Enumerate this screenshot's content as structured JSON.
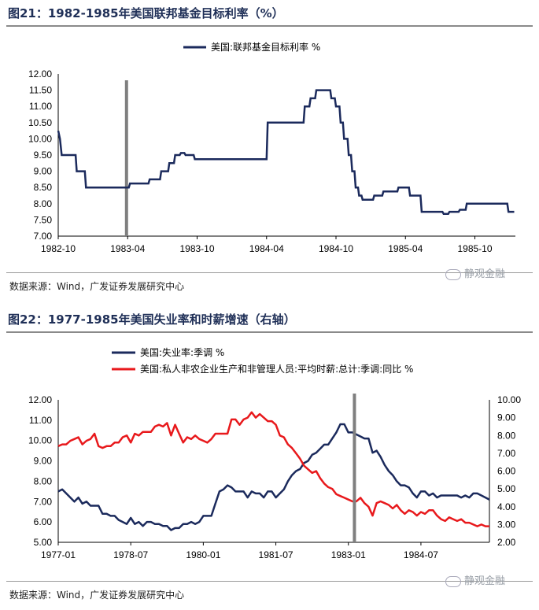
{
  "figure1": {
    "title": "图21：1982-1985年美国联邦基金目标利率（%）",
    "source": "数据来源：Wind，广发证券发展研究中心",
    "watermark": "静观金融"
  },
  "figure2": {
    "title": "图22：1977-1985年美国失业率和时薪增速（右轴）",
    "source": "数据来源：Wind，广发证券发展研究中心",
    "watermark": "静观金融"
  },
  "colors": {
    "navy": "#1b2a5c",
    "red": "#e8191c",
    "marker": "#7f7f7f",
    "title": "#1f2f57"
  },
  "chart_data": [
    {
      "type": "line",
      "title": "1982-1985年美国联邦基金目标利率（%）",
      "xlabel": "",
      "ylabel": "",
      "x_unit": "months since 1982-10",
      "xlim": [
        0,
        39.5
      ],
      "ylim": [
        7.0,
        12.0
      ],
      "yticks": [
        "7.00",
        "7.50",
        "8.00",
        "8.50",
        "9.00",
        "9.50",
        "10.00",
        "10.50",
        "11.00",
        "11.50",
        "12.00"
      ],
      "xticks": [
        {
          "x": 0,
          "label": "1982-10"
        },
        {
          "x": 6,
          "label": "1983-04"
        },
        {
          "x": 12,
          "label": "1983-10"
        },
        {
          "x": 18,
          "label": "1984-04"
        },
        {
          "x": 24,
          "label": "1984-10"
        },
        {
          "x": 30,
          "label": "1985-04"
        },
        {
          "x": 36,
          "label": "1985-10"
        }
      ],
      "vline_x": 5.9,
      "series": [
        {
          "name": "美国:联邦基金目标利率 %",
          "color": "#1b2a5c",
          "step": true,
          "points": [
            [
              0,
              10.25
            ],
            [
              0.15,
              10.0
            ],
            [
              0.3,
              9.5
            ],
            [
              1.5,
              9.5
            ],
            [
              1.6,
              9.0
            ],
            [
              2.3,
              9.0
            ],
            [
              2.4,
              8.5
            ],
            [
              6.1,
              8.5
            ],
            [
              6.2,
              8.625
            ],
            [
              7.8,
              8.625
            ],
            [
              7.9,
              8.75
            ],
            [
              8.8,
              8.75
            ],
            [
              8.9,
              9.0
            ],
            [
              9.5,
              9.0
            ],
            [
              9.6,
              9.25
            ],
            [
              10.0,
              9.25
            ],
            [
              10.1,
              9.5
            ],
            [
              10.5,
              9.5
            ],
            [
              10.6,
              9.5625
            ],
            [
              10.9,
              9.5625
            ],
            [
              11.0,
              9.5
            ],
            [
              11.7,
              9.5
            ],
            [
              11.8,
              9.375
            ],
            [
              18.0,
              9.375
            ],
            [
              18.1,
              10.5
            ],
            [
              21.2,
              10.5
            ],
            [
              21.3,
              11.0
            ],
            [
              21.7,
              11.0
            ],
            [
              21.8,
              11.25
            ],
            [
              22.2,
              11.25
            ],
            [
              22.3,
              11.5
            ],
            [
              23.5,
              11.5
            ],
            [
              23.6,
              11.25
            ],
            [
              23.9,
              11.25
            ],
            [
              24.0,
              11.0
            ],
            [
              24.3,
              11.0
            ],
            [
              24.4,
              10.5
            ],
            [
              24.6,
              10.5
            ],
            [
              24.7,
              10.0
            ],
            [
              25.0,
              10.0
            ],
            [
              25.1,
              9.5
            ],
            [
              25.3,
              9.5
            ],
            [
              25.4,
              9.0
            ],
            [
              25.6,
              9.0
            ],
            [
              25.7,
              8.5
            ],
            [
              25.9,
              8.5
            ],
            [
              26.0,
              8.25
            ],
            [
              26.2,
              8.25
            ],
            [
              26.3,
              8.125
            ],
            [
              27.2,
              8.125
            ],
            [
              27.3,
              8.25
            ],
            [
              28.0,
              8.25
            ],
            [
              28.1,
              8.375
            ],
            [
              29.3,
              8.375
            ],
            [
              29.4,
              8.5
            ],
            [
              30.3,
              8.5
            ],
            [
              30.4,
              8.25
            ],
            [
              31.3,
              8.25
            ],
            [
              31.4,
              7.75
            ],
            [
              33.2,
              7.75
            ],
            [
              33.3,
              7.6875
            ],
            [
              33.7,
              7.6875
            ],
            [
              33.8,
              7.75
            ],
            [
              34.6,
              7.75
            ],
            [
              34.7,
              7.8125
            ],
            [
              35.2,
              7.8125
            ],
            [
              35.3,
              8.0
            ],
            [
              38.8,
              8.0
            ],
            [
              38.9,
              7.75
            ],
            [
              39.4,
              7.75
            ]
          ]
        }
      ]
    },
    {
      "type": "line",
      "title": "1977-1985年美国失业率和时薪增速（右轴）",
      "xlabel": "",
      "ylabel": "",
      "x_unit": "months since 1977-01",
      "xlim": [
        0,
        107
      ],
      "ylim_left": [
        5.0,
        12.0
      ],
      "ylim_right": [
        2.0,
        10.0
      ],
      "yticks_left": [
        "5.00",
        "6.00",
        "7.00",
        "8.00",
        "9.00",
        "10.00",
        "11.00",
        "12.00"
      ],
      "yticks_right": [
        "2.00",
        "3.00",
        "4.00",
        "5.00",
        "6.00",
        "7.00",
        "8.00",
        "9.00",
        "10.00"
      ],
      "xticks": [
        {
          "x": 0,
          "label": "1977-01"
        },
        {
          "x": 18,
          "label": "1978-07"
        },
        {
          "x": 36,
          "label": "1980-01"
        },
        {
          "x": 54,
          "label": "1981-07"
        },
        {
          "x": 72,
          "label": "1983-01"
        },
        {
          "x": 90,
          "label": "1984-07"
        }
      ],
      "vline_x": 73.5,
      "series": [
        {
          "name": "美国:失业率:季调 %",
          "axis": "left",
          "color": "#1b2a5c",
          "values": [
            7.5,
            7.6,
            7.4,
            7.2,
            7.0,
            7.2,
            6.9,
            7.0,
            6.8,
            6.8,
            6.8,
            6.4,
            6.4,
            6.3,
            6.3,
            6.1,
            6.0,
            5.9,
            6.2,
            5.9,
            6.0,
            5.8,
            6.0,
            6.0,
            5.9,
            5.9,
            5.8,
            5.8,
            5.6,
            5.7,
            5.7,
            5.9,
            5.9,
            6.0,
            5.9,
            6.0,
            6.3,
            6.3,
            6.3,
            6.9,
            7.5,
            7.6,
            7.8,
            7.7,
            7.5,
            7.5,
            7.5,
            7.2,
            7.5,
            7.4,
            7.4,
            7.2,
            7.5,
            7.5,
            7.2,
            7.4,
            7.6,
            8.0,
            8.3,
            8.5,
            8.6,
            8.9,
            9.0,
            9.3,
            9.4,
            9.6,
            9.8,
            9.8,
            10.1,
            10.4,
            10.8,
            10.8,
            10.4,
            10.4,
            10.3,
            10.2,
            10.1,
            10.1,
            9.4,
            9.5,
            9.2,
            8.8,
            8.5,
            8.3,
            8.0,
            7.8,
            7.8,
            7.7,
            7.4,
            7.2,
            7.5,
            7.5,
            7.3,
            7.4,
            7.2,
            7.3,
            7.3,
            7.3,
            7.3,
            7.3,
            7.2,
            7.3,
            7.2,
            7.4,
            7.4,
            7.3,
            7.2,
            7.1
          ]
        },
        {
          "name": "美国:私人非农企业生产和非管理人员:平均时薪:总计:季调:同比 %",
          "axis": "right",
          "color": "#e8191c",
          "values": [
            7.4,
            7.5,
            7.5,
            7.7,
            7.8,
            7.9,
            7.5,
            7.7,
            7.8,
            8.1,
            7.4,
            7.3,
            7.4,
            7.4,
            7.6,
            7.6,
            7.9,
            8.0,
            7.6,
            8.1,
            8.0,
            8.2,
            8.2,
            8.2,
            8.5,
            8.6,
            8.5,
            8.7,
            8.0,
            8.6,
            8.1,
            7.6,
            7.9,
            7.8,
            8.0,
            7.8,
            7.7,
            7.6,
            7.8,
            8.1,
            8.1,
            8.1,
            8.1,
            8.9,
            8.9,
            8.6,
            8.9,
            9.0,
            9.3,
            9.0,
            9.2,
            9.0,
            8.8,
            8.8,
            8.6,
            8.0,
            7.9,
            7.5,
            7.3,
            7.0,
            6.7,
            6.3,
            6.1,
            5.9,
            6.0,
            5.6,
            5.3,
            5.1,
            5.0,
            4.7,
            4.6,
            4.5,
            4.4,
            4.3,
            4.3,
            4.5,
            4.2,
            4.0,
            3.5,
            4.2,
            4.3,
            4.2,
            4.1,
            3.9,
            4.1,
            3.8,
            3.6,
            3.8,
            3.7,
            3.5,
            3.7,
            3.6,
            3.8,
            3.8,
            3.5,
            3.3,
            3.2,
            3.4,
            3.3,
            3.2,
            3.3,
            3.1,
            3.1,
            3.0,
            2.9,
            3.0,
            2.9,
            2.9
          ]
        }
      ]
    }
  ]
}
